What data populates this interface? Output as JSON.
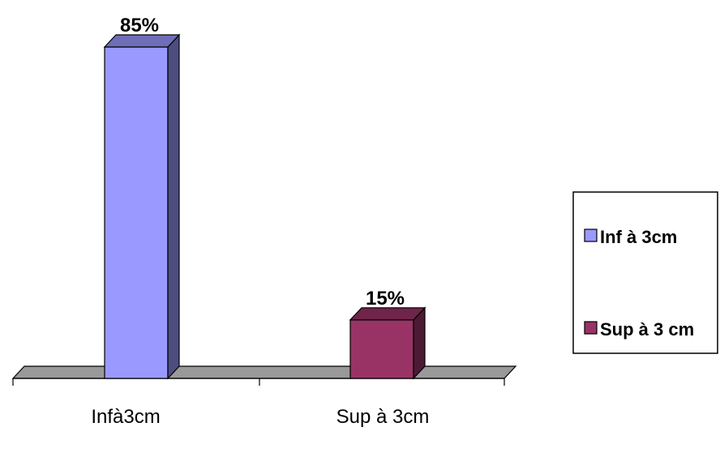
{
  "chart_data": {
    "type": "bar",
    "style": "3d",
    "categories": [
      "Infà3cm",
      "Sup à 3cm"
    ],
    "values": [
      85,
      15
    ],
    "data_labels": [
      "85%",
      "15%"
    ],
    "colors": [
      "#9999ff",
      "#993366"
    ],
    "legend": {
      "placement": "right",
      "entries": [
        {
          "label": "Inf à 3cm",
          "color": "#9999ff"
        },
        {
          "label": "Sup à 3 cm",
          "color": "#993366"
        }
      ]
    },
    "ylim": [
      0,
      85
    ],
    "grid": false,
    "title": "",
    "xlabel": "",
    "ylabel": ""
  }
}
